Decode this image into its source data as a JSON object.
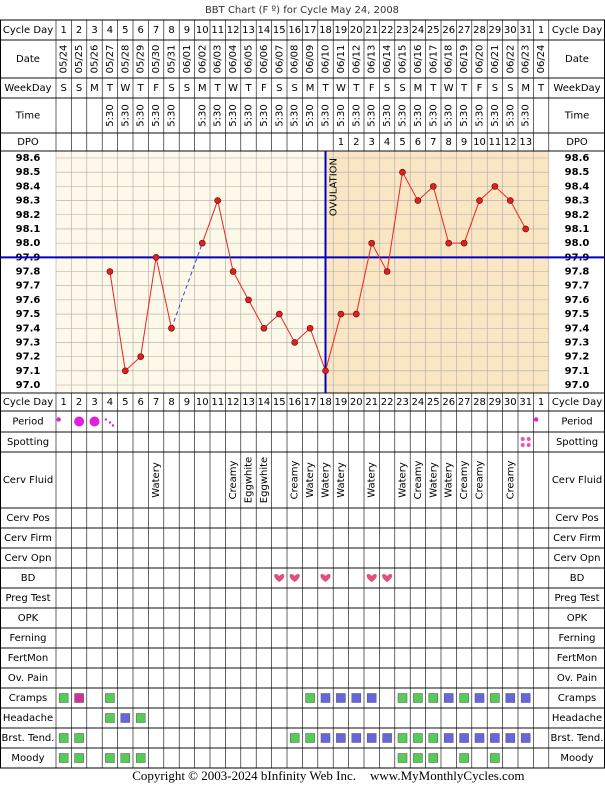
{
  "title": "BBT Chart (F º) for Cycle May 24, 2008",
  "rows": {
    "cycle_day": "Cycle Day",
    "date": "Date",
    "weekday": "WeekDay",
    "time": "Time",
    "dpo": "DPO",
    "period": "Period",
    "spotting": "Spotting",
    "cerv_fluid": "Cerv Fluid",
    "cerv_pos": "Cerv Pos",
    "cerv_firm": "Cerv Firm",
    "cerv_opn": "Cerv Opn",
    "bd": "BD",
    "preg_test": "Preg Test",
    "opk": "OPK",
    "ferning": "Ferning",
    "fertmon": "FertMon",
    "ov_pain": "Ov. Pain",
    "cramps": "Cramps",
    "headache": "Headache",
    "brst_tend": "Brst. Tend.",
    "moody": "Moody"
  },
  "cycle_days": [
    1,
    2,
    3,
    4,
    5,
    6,
    7,
    8,
    9,
    10,
    11,
    12,
    13,
    14,
    15,
    16,
    17,
    18,
    19,
    20,
    21,
    22,
    23,
    24,
    25,
    26,
    27,
    28,
    29,
    30,
    31,
    1
  ],
  "dates": [
    "05/24",
    "05/25",
    "05/26",
    "05/27",
    "05/28",
    "05/29",
    "05/30",
    "05/31",
    "06/01",
    "06/02",
    "06/03",
    "06/04",
    "06/05",
    "06/06",
    "06/07",
    "06/08",
    "06/09",
    "06/10",
    "06/11",
    "06/12",
    "06/13",
    "06/14",
    "06/15",
    "06/16",
    "06/17",
    "06/18",
    "06/19",
    "06/20",
    "06/21",
    "06/22",
    "06/23",
    "06/24"
  ],
  "weekdays": [
    "S",
    "S",
    "M",
    "T",
    "W",
    "T",
    "F",
    "S",
    "S",
    "M",
    "T",
    "W",
    "T",
    "F",
    "S",
    "S",
    "M",
    "T",
    "W",
    "T",
    "F",
    "S",
    "S",
    "M",
    "T",
    "W",
    "T",
    "F",
    "S",
    "S",
    "M",
    "T"
  ],
  "times": [
    null,
    null,
    null,
    "5:30",
    "5:30",
    "5:30",
    "5:30",
    "5:30",
    null,
    "5:30",
    "5:30",
    "5:30",
    "5:30",
    "5:30",
    "5:30",
    "5:30",
    "5:30",
    "5:30",
    "5:30",
    "5:30",
    "5:30",
    "5:30",
    "5:30",
    "5:30",
    "5:30",
    "5:30",
    "5:30",
    "5:30",
    "5:30",
    "5:30",
    "5:30",
    null
  ],
  "dpo": [
    null,
    null,
    null,
    null,
    null,
    null,
    null,
    null,
    null,
    null,
    null,
    null,
    null,
    null,
    null,
    null,
    null,
    null,
    1,
    2,
    3,
    4,
    5,
    6,
    7,
    8,
    9,
    10,
    11,
    12,
    13,
    null
  ],
  "chart_data": {
    "type": "line",
    "ylim": [
      97.0,
      98.6
    ],
    "yticks": [
      {
        "value": 97.0,
        "label": "97.0"
      },
      97.1,
      97.2,
      97.3,
      97.4,
      97.5,
      97.6,
      97.7,
      97.8,
      97.9,
      {
        "value": 98.0,
        "label": "98.0"
      },
      98.1,
      98.2,
      98.3,
      98.4,
      98.5,
      98.6
    ],
    "grid": true,
    "color": "#ee2222",
    "coverline": 97.9,
    "coverline_color": "#0000c0",
    "ovulation_day": 18,
    "ovulation_label": "OVULATION",
    "pre_color": "#fdf8e8",
    "post_color": "#fbe6c4",
    "values": [
      null,
      null,
      null,
      97.8,
      97.1,
      97.2,
      97.9,
      97.4,
      null,
      98.0,
      98.3,
      97.8,
      97.6,
      97.4,
      97.5,
      97.3,
      97.4,
      97.1,
      97.5,
      97.5,
      98.0,
      97.8,
      98.5,
      98.3,
      98.4,
      98.0,
      98.0,
      98.3,
      98.4,
      98.3,
      98.1,
      null
    ]
  },
  "period": [
    "light",
    "heavy",
    "heavy",
    "spotting",
    null,
    null,
    null,
    null,
    null,
    null,
    null,
    null,
    null,
    null,
    null,
    null,
    null,
    null,
    null,
    null,
    null,
    null,
    null,
    null,
    null,
    null,
    null,
    null,
    null,
    null,
    null,
    "light"
  ],
  "spotting": [
    null,
    null,
    null,
    null,
    null,
    null,
    null,
    null,
    null,
    null,
    null,
    null,
    null,
    null,
    null,
    null,
    null,
    null,
    null,
    null,
    null,
    null,
    null,
    null,
    null,
    null,
    null,
    null,
    null,
    null,
    "spotting",
    null
  ],
  "cerv_fluid": [
    null,
    null,
    null,
    null,
    null,
    null,
    "Watery",
    null,
    null,
    null,
    null,
    "Creamy",
    "Eggwhite",
    "Eggwhite",
    null,
    "Creamy",
    "Watery",
    "Watery",
    "Watery",
    null,
    "Watery",
    null,
    "Watery",
    "Creamy",
    "Watery",
    "Watery",
    "Creamy",
    "Creamy",
    null,
    "Creamy",
    null,
    null
  ],
  "bd": [
    null,
    null,
    null,
    null,
    null,
    null,
    null,
    null,
    null,
    null,
    null,
    null,
    null,
    null,
    true,
    true,
    null,
    true,
    null,
    null,
    true,
    true,
    null,
    null,
    null,
    null,
    null,
    null,
    null,
    null,
    null,
    null
  ],
  "symptom_colors": {
    "mild": "#55cc55",
    "moderate": "#6666dd",
    "severe": "#cc3399"
  },
  "symptoms": {
    "cramps": [
      "mild",
      "severe",
      null,
      "mild",
      null,
      null,
      null,
      null,
      null,
      null,
      null,
      null,
      null,
      null,
      null,
      null,
      "mild",
      "moderate",
      "moderate",
      "moderate",
      "moderate",
      null,
      "mild",
      "mild",
      "mild",
      "moderate",
      "mild",
      "moderate",
      "mild",
      "moderate",
      "moderate",
      null
    ],
    "headache": [
      null,
      null,
      null,
      "mild",
      "moderate",
      "mild",
      null,
      null,
      null,
      null,
      null,
      null,
      null,
      null,
      null,
      null,
      null,
      null,
      null,
      null,
      null,
      null,
      null,
      null,
      null,
      null,
      null,
      null,
      null,
      null,
      null,
      null
    ],
    "brst_tend": [
      "mild",
      "mild",
      null,
      null,
      null,
      null,
      null,
      null,
      null,
      null,
      null,
      null,
      null,
      null,
      null,
      "mild",
      "mild",
      "moderate",
      "moderate",
      "moderate",
      "moderate",
      "moderate",
      "mild",
      "mild",
      "mild",
      "moderate",
      "moderate",
      "moderate",
      "moderate",
      "moderate",
      "moderate",
      null
    ],
    "moody": [
      "mild",
      "mild",
      null,
      "mild",
      "mild",
      "mild",
      null,
      null,
      null,
      null,
      null,
      null,
      null,
      null,
      null,
      null,
      null,
      null,
      null,
      null,
      null,
      null,
      "mild",
      "mild",
      "mild",
      null,
      "mild",
      null,
      "mild",
      null,
      null,
      null
    ]
  },
  "copyright": "Copyright © 2003-2024 bInfinity Web Inc.",
  "site": "www.MyMonthlyCycles.com"
}
